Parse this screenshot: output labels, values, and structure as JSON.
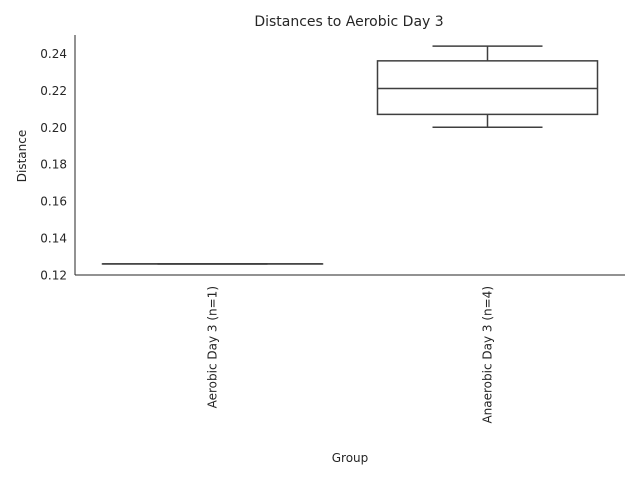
{
  "chart_data": {
    "type": "box",
    "title": "Distances to Aerobic Day 3",
    "xlabel": "Group",
    "ylabel": "Distance",
    "ylim": [
      0.12,
      0.25
    ],
    "yticks": [
      0.12,
      0.14,
      0.16,
      0.18,
      0.2,
      0.22,
      0.24
    ],
    "ytick_labels": [
      "0.12",
      "0.14",
      "0.16",
      "0.18",
      "0.20",
      "0.22",
      "0.24"
    ],
    "grid": false,
    "categories": [
      "Aerobic Day 3 (n=1)",
      "Anaerobic Day 3 (n=4)"
    ],
    "boxes": [
      {
        "category": "Aerobic Day 3 (n=1)",
        "min": 0.126,
        "q1": 0.126,
        "median": 0.126,
        "q3": 0.126,
        "max": 0.126
      },
      {
        "category": "Anaerobic Day 3 (n=4)",
        "min": 0.2,
        "q1": 0.207,
        "median": 0.221,
        "q3": 0.236,
        "max": 0.244
      }
    ],
    "colors": {
      "box_line": "#3f3f3f",
      "axis": "#262626",
      "box_fill": "#ffffff"
    }
  }
}
